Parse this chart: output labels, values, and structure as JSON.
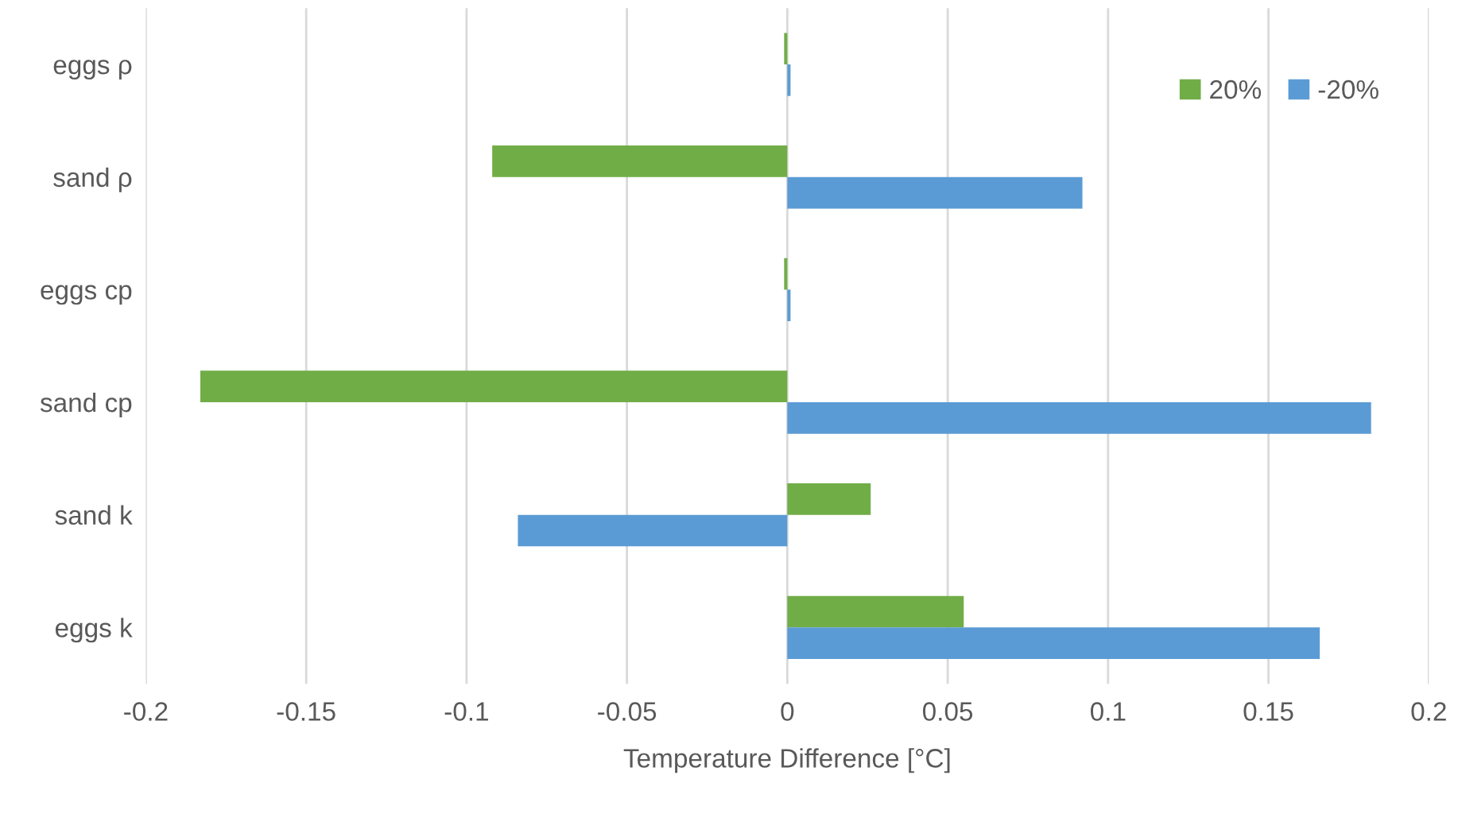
{
  "chart_data": {
    "type": "bar",
    "orientation": "horizontal",
    "xlabel": "Temperature Difference [°C]",
    "categories": [
      "eggs ρ",
      "sand ρ",
      "eggs cp",
      "sand cp",
      "sand k",
      "eggs k"
    ],
    "series": [
      {
        "name": "20%",
        "color": "#70ad47",
        "values": [
          -0.001,
          -0.092,
          -0.001,
          -0.183,
          0.026,
          0.055
        ]
      },
      {
        "name": "-20%",
        "color": "#5b9bd5",
        "values": [
          0.001,
          0.092,
          0.001,
          0.182,
          -0.084,
          0.166
        ]
      }
    ],
    "xlim": [
      -0.2,
      0.2
    ],
    "xticks": [
      -0.2,
      -0.15,
      -0.1,
      -0.05,
      0,
      0.05,
      0.1,
      0.15,
      0.2
    ],
    "grid": "x",
    "legend": "top right"
  }
}
